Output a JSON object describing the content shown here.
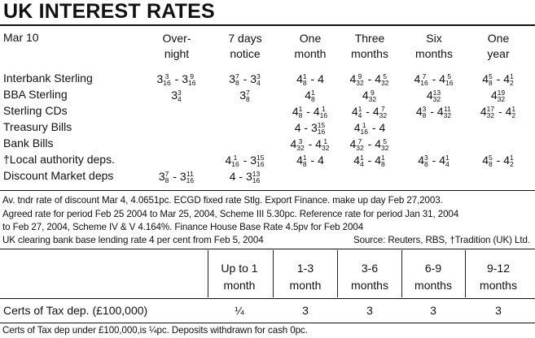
{
  "title": "UK INTEREST RATES",
  "rates_table": {
    "date": "Mar 10",
    "columns": [
      {
        "line1": "Over-",
        "line2": "night"
      },
      {
        "line1": "7 days",
        "line2": "notice"
      },
      {
        "line1": "One",
        "line2": "month"
      },
      {
        "line1": "Three",
        "line2": "months"
      },
      {
        "line1": "Six",
        "line2": "months"
      },
      {
        "line1": "One",
        "line2": "year"
      }
    ],
    "rows": [
      {
        "label": "Interbank Sterling",
        "cells": [
          "3 3/16 - 3 9/16",
          "3 7/8 - 3 3/4",
          "4 1/8 - 4",
          "4 9/32 - 4 5/32",
          "4 7/16 - 4 5/16",
          "4 5/8 - 4 1/2"
        ]
      },
      {
        "label": "BBA Sterling",
        "cells": [
          "3 3/4",
          "3 7/8",
          "4 1/8",
          "4 9/32",
          "4 13/32",
          "4 19/32"
        ]
      },
      {
        "label": "Sterling CDs",
        "cells": [
          "",
          "",
          "4 1/8 - 4 1/16",
          "4 1/4 - 4 7/32",
          "4 3/8 - 4 11/32",
          "4 17/32 - 4 1/2"
        ]
      },
      {
        "label": "Treasury Bills",
        "cells": [
          "",
          "",
          "4 - 3 15/16",
          "4 1/16 - 4",
          "",
          ""
        ]
      },
      {
        "label": "Bank Bills",
        "cells": [
          "",
          "",
          "4 3/32 - 4 1/32",
          "4 7/32 - 4 5/32",
          "",
          ""
        ]
      },
      {
        "label": "†Local authority deps.",
        "cells": [
          "",
          "4 1/16 - 3 15/16",
          "4 1/8 - 4",
          "4 1/4 - 4 1/8",
          "4 3/8 - 4 1/4",
          "4 5/8 - 4 1/2"
        ]
      },
      {
        "label": "Discount Market deps",
        "cells": [
          "3 7/8 - 3 11/16",
          "4 - 3 13/16",
          "",
          "",
          "",
          ""
        ]
      }
    ]
  },
  "notes": {
    "line1": "Av. tndr rate of discount Mar 4, 4.0651pc. ECGD fixed rate Stlg. Export Finance. make up day Feb 27,2003.",
    "line2": "Agreed rate for period Feb 25 2004 to Mar 25, 2004, Scheme III 5.30pc. Reference rate for period Jan 31, 2004",
    "line3": "to Feb 27, 2004, Scheme IV & V 4.164%. Finance House Base Rate 4.5pv for Feb 2004",
    "line4": "UK clearing bank base lending rate 4 per cent from Feb 5, 2004",
    "source": "Source: Reuters, RBS, †Tradition (UK) Ltd."
  },
  "tax_table": {
    "columns": [
      {
        "line1": "Up to 1",
        "line2": "month"
      },
      {
        "line1": "1-3",
        "line2": "month"
      },
      {
        "line1": "3-6",
        "line2": "months"
      },
      {
        "line1": "6-9",
        "line2": "months"
      },
      {
        "line1": "9-12",
        "line2": "months"
      }
    ],
    "row": {
      "label": "Certs of Tax dep. (£100,000)",
      "cells": [
        "1/4",
        "3",
        "3",
        "3",
        "3"
      ]
    },
    "footnote": "Certs of Tax dep under £100,000,is ¼pc. Deposits withdrawn for cash 0pc."
  }
}
